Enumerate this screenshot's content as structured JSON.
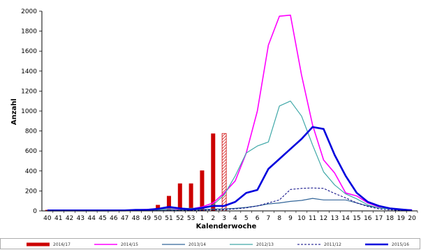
{
  "chart_data": {
    "type": "line",
    "xlabel": "Kalenderwoche",
    "ylabel": "Anzahl",
    "ylim": [
      0,
      2000
    ],
    "yticks": [
      0,
      200,
      400,
      600,
      800,
      1000,
      1200,
      1400,
      1600,
      1800,
      2000
    ],
    "categories": [
      "40",
      "41",
      "42",
      "43",
      "44",
      "45",
      "46",
      "47",
      "48",
      "49",
      "50",
      "51",
      "52",
      "53",
      "1",
      "2",
      "3",
      "4",
      "5",
      "6",
      "7",
      "8",
      "9",
      "10",
      "11",
      "12",
      "13",
      "14",
      "15",
      "16",
      "17",
      "18",
      "19",
      "20"
    ],
    "grid": false,
    "legend_position": "bottom",
    "bars": {
      "name": "2016/17",
      "color": "#cc0000",
      "values": [
        10,
        5,
        5,
        5,
        5,
        5,
        5,
        5,
        10,
        15,
        60,
        150,
        275,
        275,
        405,
        775,
        775
      ],
      "hatched_last": true
    },
    "series": [
      {
        "name": "2014/15",
        "color": "#ff00ff",
        "width": 1.6,
        "dash": "",
        "values": [
          5,
          5,
          5,
          5,
          5,
          5,
          5,
          8,
          10,
          15,
          20,
          20,
          20,
          20,
          40,
          80,
          180,
          300,
          580,
          1000,
          1660,
          1950,
          1960,
          1360,
          860,
          510,
          380,
          180,
          150,
          80,
          40,
          25,
          15,
          10
        ]
      },
      {
        "name": "2013/14",
        "color": "#336699",
        "width": 1.2,
        "dash": "",
        "values": [
          0,
          0,
          0,
          0,
          0,
          0,
          0,
          2,
          2,
          4,
          6,
          8,
          10,
          10,
          14,
          18,
          20,
          25,
          35,
          50,
          70,
          80,
          95,
          105,
          125,
          110,
          110,
          110,
          80,
          50,
          30,
          20,
          10,
          5
        ]
      },
      {
        "name": "2012/13",
        "color": "#40a8a8",
        "width": 1.2,
        "dash": "",
        "values": [
          2,
          2,
          2,
          2,
          2,
          2,
          4,
          6,
          8,
          10,
          15,
          20,
          25,
          25,
          30,
          60,
          160,
          350,
          580,
          650,
          690,
          1050,
          1100,
          950,
          660,
          390,
          260,
          170,
          120,
          60,
          30,
          20,
          10,
          5
        ]
      },
      {
        "name": "2011/12",
        "color": "#000080",
        "width": 1.0,
        "dash": "3,2",
        "values": [
          0,
          0,
          0,
          0,
          0,
          0,
          0,
          0,
          2,
          2,
          2,
          2,
          5,
          5,
          8,
          10,
          12,
          20,
          30,
          50,
          80,
          110,
          215,
          225,
          230,
          225,
          175,
          130,
          80,
          45,
          20,
          10,
          5,
          2
        ]
      },
      {
        "name": "2015/16",
        "color": "#0000dd",
        "width": 2.6,
        "dash": "",
        "values": [
          5,
          5,
          5,
          5,
          5,
          5,
          5,
          5,
          10,
          10,
          20,
          40,
          25,
          15,
          30,
          50,
          50,
          90,
          180,
          210,
          420,
          520,
          620,
          720,
          840,
          820,
          560,
          350,
          180,
          90,
          50,
          25,
          15,
          5
        ]
      }
    ]
  }
}
